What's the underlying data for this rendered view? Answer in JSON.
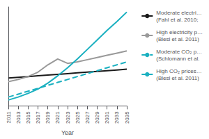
{
  "chart_data": {
    "type": "line",
    "xlabel": "Year",
    "x": [
      2011,
      2013,
      2015,
      2017,
      2019,
      2021,
      2023,
      2025,
      2027,
      2029,
      2031,
      2033,
      2035
    ],
    "series": [
      {
        "name": "Moderate electri…\n(Fahl et al. 2010;",
        "color": "#1a1a1a",
        "line_style": "solid",
        "values": [
          0.38,
          0.39,
          0.4,
          0.41,
          0.42,
          0.43,
          0.44,
          0.45,
          0.46,
          0.47,
          0.48,
          0.49,
          0.5
        ]
      },
      {
        "name": "High electricity p…\n(Blesl et al. 2011)",
        "color": "#999999",
        "line_style": "solid",
        "values": [
          0.33,
          0.36,
          0.4,
          0.46,
          0.56,
          0.64,
          0.58,
          0.6,
          0.63,
          0.66,
          0.69,
          0.72,
          0.75
        ]
      },
      {
        "name": "Moderate CO₂ p…\n(Schlomann et al.",
        "color": "#1ab0c0",
        "line_style": "dashed",
        "values": [
          0.12,
          0.16,
          0.2,
          0.24,
          0.28,
          0.32,
          0.36,
          0.4,
          0.44,
          0.48,
          0.52,
          0.56,
          0.6
        ]
      },
      {
        "name": "High CO₂ prices…\n(Blesl et al. 2011)",
        "color": "#1ab0c0",
        "line_style": "solid",
        "values": [
          0.08,
          0.12,
          0.17,
          0.23,
          0.31,
          0.41,
          0.52,
          0.64,
          0.77,
          0.9,
          1.03,
          1.15,
          1.28
        ]
      }
    ],
    "xlim": [
      2011,
      2035
    ],
    "xticks": [
      2011,
      2013,
      2015,
      2017,
      2019,
      2021,
      2023,
      2025,
      2027,
      2029,
      2031,
      2033,
      2035
    ],
    "ylim": [
      0.0,
      1.35
    ],
    "yticks": [],
    "grid": false,
    "tick_labels": "x",
    "legend": "right"
  }
}
